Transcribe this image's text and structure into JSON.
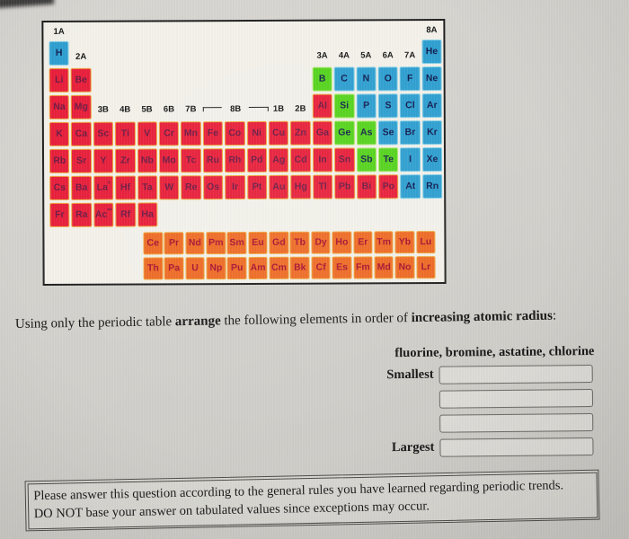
{
  "periodic_table": {
    "legend": {
      "m": "metal",
      "n": "nonmetal-noble-gas",
      "md": "metalloid",
      "f": "lanthanide-actinide"
    },
    "colors": {
      "m": {
        "fill": "#e81e3a",
        "border": "#f0a73c",
        "text": "#6d1a44"
      },
      "n": {
        "fill": "#2e9fd0",
        "border": "#85d0e8",
        "text": "#101c50"
      },
      "md": {
        "fill": "#55d31c",
        "border": "#aee86e",
        "text": "#14254a"
      },
      "f": {
        "fill": "#ee6a24",
        "border": "#f0a73c",
        "text": "#a81230"
      }
    },
    "group_labels": [
      {
        "text": "1A",
        "col": 0,
        "band": "top"
      },
      {
        "text": "8A",
        "col": 17,
        "band": "top"
      },
      {
        "text": "2A",
        "col": 1,
        "band": "a"
      },
      {
        "text": "3A",
        "col": 12,
        "band": "a"
      },
      {
        "text": "4A",
        "col": 13,
        "band": "a"
      },
      {
        "text": "5A",
        "col": 14,
        "band": "a"
      },
      {
        "text": "6A",
        "col": 15,
        "band": "a"
      },
      {
        "text": "7A",
        "col": 16,
        "band": "a"
      },
      {
        "text": "3B",
        "col": 2,
        "band": "b"
      },
      {
        "text": "4B",
        "col": 3,
        "band": "b"
      },
      {
        "text": "5B",
        "col": 4,
        "band": "b"
      },
      {
        "text": "6B",
        "col": 5,
        "band": "b"
      },
      {
        "text": "7B",
        "col": 6,
        "band": "b"
      },
      {
        "text": "1B",
        "col": 10,
        "band": "b"
      },
      {
        "text": "2B",
        "col": 11,
        "band": "b"
      }
    ],
    "bracket": {
      "label": "8B",
      "col_from": 7,
      "col_to": 9
    },
    "rows": [
      [
        [
          "H",
          0,
          "n"
        ],
        [
          "He",
          17,
          "n"
        ]
      ],
      [
        [
          "Li",
          0,
          "m"
        ],
        [
          "Be",
          1,
          "m"
        ],
        [
          "B",
          12,
          "md"
        ],
        [
          "C",
          13,
          "n"
        ],
        [
          "N",
          14,
          "n"
        ],
        [
          "O",
          15,
          "n"
        ],
        [
          "F",
          16,
          "n"
        ],
        [
          "Ne",
          17,
          "n"
        ]
      ],
      [
        [
          "Na",
          0,
          "m"
        ],
        [
          "Mg",
          1,
          "m"
        ],
        [
          "Al",
          12,
          "m"
        ],
        [
          "Si",
          13,
          "md"
        ],
        [
          "P",
          14,
          "n"
        ],
        [
          "S",
          15,
          "n"
        ],
        [
          "Cl",
          16,
          "n"
        ],
        [
          "Ar",
          17,
          "n"
        ]
      ],
      [
        [
          "K",
          0,
          "m"
        ],
        [
          "Ca",
          1,
          "m"
        ],
        [
          "Sc",
          2,
          "m"
        ],
        [
          "Ti",
          3,
          "m"
        ],
        [
          "V",
          4,
          "m"
        ],
        [
          "Cr",
          5,
          "m"
        ],
        [
          "Mn",
          6,
          "m"
        ],
        [
          "Fe",
          7,
          "m"
        ],
        [
          "Co",
          8,
          "m"
        ],
        [
          "Ni",
          9,
          "m"
        ],
        [
          "Cu",
          10,
          "m"
        ],
        [
          "Zn",
          11,
          "m"
        ],
        [
          "Ga",
          12,
          "m"
        ],
        [
          "Ge",
          13,
          "md"
        ],
        [
          "As",
          14,
          "md"
        ],
        [
          "Se",
          15,
          "n"
        ],
        [
          "Br",
          16,
          "n"
        ],
        [
          "Kr",
          17,
          "n"
        ]
      ],
      [
        [
          "Rb",
          0,
          "m"
        ],
        [
          "Sr",
          1,
          "m"
        ],
        [
          "Y",
          2,
          "m"
        ],
        [
          "Zr",
          3,
          "m"
        ],
        [
          "Nb",
          4,
          "m"
        ],
        [
          "Mo",
          5,
          "m"
        ],
        [
          "Tc",
          6,
          "m"
        ],
        [
          "Ru",
          7,
          "m"
        ],
        [
          "Rh",
          8,
          "m"
        ],
        [
          "Pd",
          9,
          "m"
        ],
        [
          "Ag",
          10,
          "m"
        ],
        [
          "Cd",
          11,
          "m"
        ],
        [
          "In",
          12,
          "m"
        ],
        [
          "Sn",
          13,
          "m"
        ],
        [
          "Sb",
          14,
          "md"
        ],
        [
          "Te",
          15,
          "md"
        ],
        [
          "I",
          16,
          "n"
        ],
        [
          "Xe",
          17,
          "n"
        ]
      ],
      [
        [
          "Cs",
          0,
          "m"
        ],
        [
          "Ba",
          1,
          "m"
        ],
        [
          "La",
          2,
          "m",
          "*"
        ],
        [
          "Hf",
          3,
          "m"
        ],
        [
          "Ta",
          4,
          "m"
        ],
        [
          "W",
          5,
          "m"
        ],
        [
          "Re",
          6,
          "m"
        ],
        [
          "Os",
          7,
          "m"
        ],
        [
          "Ir",
          8,
          "m"
        ],
        [
          "Pt",
          9,
          "m"
        ],
        [
          "Au",
          10,
          "m"
        ],
        [
          "Hg",
          11,
          "m"
        ],
        [
          "Tl",
          12,
          "m"
        ],
        [
          "Pb",
          13,
          "m"
        ],
        [
          "Bi",
          14,
          "m"
        ],
        [
          "Po",
          15,
          "m"
        ],
        [
          "At",
          16,
          "n"
        ],
        [
          "Rn",
          17,
          "n"
        ]
      ],
      [
        [
          "Fr",
          0,
          "m"
        ],
        [
          "Ra",
          1,
          "m"
        ],
        [
          "Ac",
          2,
          "m",
          "**"
        ],
        [
          "Rf",
          3,
          "m"
        ],
        [
          "Ha",
          4,
          "m"
        ]
      ]
    ],
    "f_rows": [
      [
        "Ce",
        "Pr",
        "Nd",
        "Pm",
        "Sm",
        "Eu",
        "Gd",
        "Tb",
        "Dy",
        "Ho",
        "Er",
        "Tm",
        "Yb",
        "Lu"
      ],
      [
        "Th",
        "Pa",
        "U",
        "Np",
        "Pu",
        "Am",
        "Cm",
        "Bk",
        "Cf",
        "Es",
        "Fm",
        "Md",
        "No",
        "Lr"
      ]
    ]
  },
  "question": {
    "segments": [
      {
        "text": "Using only the periodic table ",
        "bold": false
      },
      {
        "text": "arrange",
        "bold": true
      },
      {
        "text": " the following elements in order of ",
        "bold": false
      },
      {
        "text": "increasing atomic radius",
        "bold": true
      },
      {
        "text": ":",
        "bold": false
      }
    ],
    "elements_line": "fluorine, bromine, astatine, chlorine"
  },
  "answer": {
    "smallest_label": "Smallest",
    "largest_label": "Largest",
    "inputs": [
      {
        "value": ""
      },
      {
        "value": ""
      },
      {
        "value": ""
      },
      {
        "value": ""
      }
    ]
  },
  "note": {
    "lines": [
      "Please answer this question according to the general rules you have learned regarding periodic trends.",
      "DO NOT base your answer on tabulated values since exceptions may occur."
    ]
  }
}
